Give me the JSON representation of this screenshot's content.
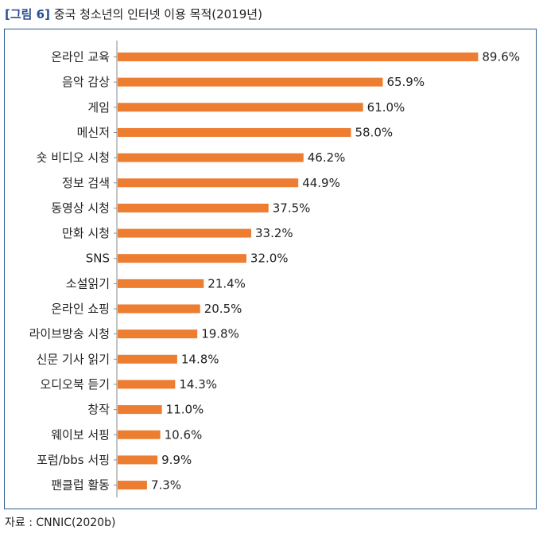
{
  "figure": {
    "tag": "[그림 6]",
    "title": "중국 청소년의 인터넷 이용 목적(2019년)"
  },
  "source": "자료 : CNNIC(2020b)",
  "colors": {
    "bar": "#ED7D31",
    "frame": "#2F5D8A",
    "tag": "#2B4F8F"
  },
  "chart_data": {
    "type": "bar",
    "orientation": "horizontal",
    "title": "",
    "xlabel": "",
    "ylabel": "",
    "unit": "%",
    "xlim": [
      0,
      100
    ],
    "grid": false,
    "legend": "none",
    "categories": [
      "온라인 교육",
      "음악 감상",
      "게임",
      "메신저",
      "숏 비디오 시청",
      "정보 검색",
      "동영상 시청",
      "만화 시청",
      "SNS",
      "소설읽기",
      "온라인 쇼핑",
      "라이브방송 시청",
      "신문 기사 읽기",
      "오디오북 듣기",
      "창작",
      "웨이보 서핑",
      "포럼/bbs 서핑",
      "팬클럽 활동"
    ],
    "values": [
      89.6,
      65.9,
      61.0,
      58.0,
      46.2,
      44.9,
      37.5,
      33.2,
      32.0,
      21.4,
      20.5,
      19.8,
      14.8,
      14.3,
      11.0,
      10.6,
      9.9,
      7.3
    ],
    "value_labels": [
      "89.6%",
      "65.9%",
      "61.0%",
      "58.0%",
      "46.2%",
      "44.9%",
      "37.5%",
      "33.2%",
      "32.0%",
      "21.4%",
      "20.5%",
      "19.8%",
      "14.8%",
      "14.3%",
      "11.0%",
      "10.6%",
      "9.9%",
      "7.3%"
    ]
  }
}
